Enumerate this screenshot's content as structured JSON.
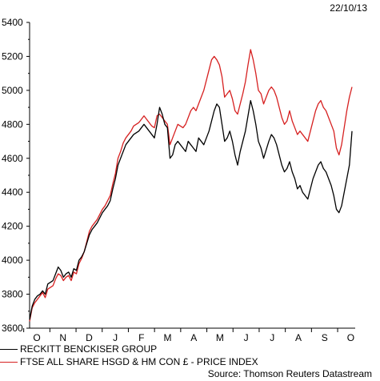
{
  "date_label": "22/10/13",
  "source_label": "Source: Thomson Reuters Datastream",
  "colors": {
    "series_1": "#000000",
    "series_2": "#d62020"
  },
  "chart_data": {
    "type": "line",
    "ylim": [
      3600,
      5400
    ],
    "yticks": [
      3600,
      3800,
      4000,
      4200,
      4400,
      4600,
      4800,
      5000,
      5200,
      5400
    ],
    "month_labels": [
      "O",
      "N",
      "D",
      "J",
      "F",
      "M",
      "A",
      "M",
      "J",
      "J",
      "A",
      "S",
      "O"
    ],
    "grid": false,
    "legend_position": "bottom-left",
    "series": [
      {
        "name": "RECKITT BENCKISER GROUP",
        "color": "#000000",
        "values": [
          3650,
          3730,
          3770,
          3790,
          3800,
          3820,
          3800,
          3860,
          3870,
          3880,
          3920,
          3960,
          3940,
          3900,
          3920,
          3930,
          3900,
          3950,
          3940,
          4000,
          4020,
          4050,
          4100,
          4150,
          4180,
          4200,
          4220,
          4250,
          4280,
          4300,
          4320,
          4350,
          4420,
          4480,
          4560,
          4600,
          4640,
          4680,
          4700,
          4720,
          4740,
          4750,
          4760,
          4780,
          4800,
          4780,
          4760,
          4740,
          4720,
          4800,
          4900,
          4860,
          4800,
          4780,
          4600,
          4620,
          4680,
          4700,
          4680,
          4660,
          4640,
          4700,
          4680,
          4660,
          4640,
          4720,
          4700,
          4680,
          4720,
          4760,
          4820,
          4880,
          4920,
          4900,
          4800,
          4700,
          4720,
          4760,
          4700,
          4620,
          4560,
          4640,
          4700,
          4760,
          4850,
          4940,
          4880,
          4800,
          4700,
          4660,
          4600,
          4650,
          4700,
          4740,
          4720,
          4680,
          4620,
          4560,
          4520,
          4540,
          4580,
          4520,
          4480,
          4420,
          4440,
          4400,
          4380,
          4360,
          4420,
          4480,
          4520,
          4560,
          4580,
          4540,
          4520,
          4480,
          4440,
          4380,
          4300,
          4280,
          4320,
          4400,
          4480,
          4560,
          4760
        ]
      },
      {
        "name": "FTSE ALL SHARE HSGD & HM CON £ - PRICE INDEX",
        "color": "#d62020",
        "values": [
          3640,
          3720,
          3750,
          3770,
          3790,
          3810,
          3780,
          3830,
          3840,
          3850,
          3890,
          3920,
          3910,
          3880,
          3900,
          3910,
          3880,
          3930,
          3920,
          3980,
          4010,
          4050,
          4110,
          4170,
          4200,
          4220,
          4240,
          4270,
          4300,
          4320,
          4350,
          4380,
          4450,
          4510,
          4600,
          4640,
          4690,
          4720,
          4740,
          4760,
          4790,
          4800,
          4810,
          4830,
          4850,
          4830,
          4810,
          4790,
          4780,
          4850,
          4860,
          4840,
          4820,
          4800,
          4680,
          4720,
          4760,
          4800,
          4790,
          4780,
          4800,
          4840,
          4880,
          4900,
          4880,
          4920,
          4960,
          5000,
          5060,
          5120,
          5180,
          5200,
          5180,
          5150,
          5080,
          4960,
          4980,
          5000,
          4950,
          4880,
          4860,
          4920,
          4980,
          5050,
          5150,
          5240,
          5180,
          5100,
          5000,
          4980,
          4920,
          4960,
          5000,
          5020,
          5000,
          4960,
          4900,
          4840,
          4800,
          4820,
          4880,
          4820,
          4780,
          4740,
          4760,
          4740,
          4720,
          4700,
          4760,
          4820,
          4880,
          4920,
          4940,
          4900,
          4880,
          4840,
          4800,
          4760,
          4660,
          4620,
          4680,
          4780,
          4880,
          4960,
          5020
        ]
      }
    ]
  }
}
